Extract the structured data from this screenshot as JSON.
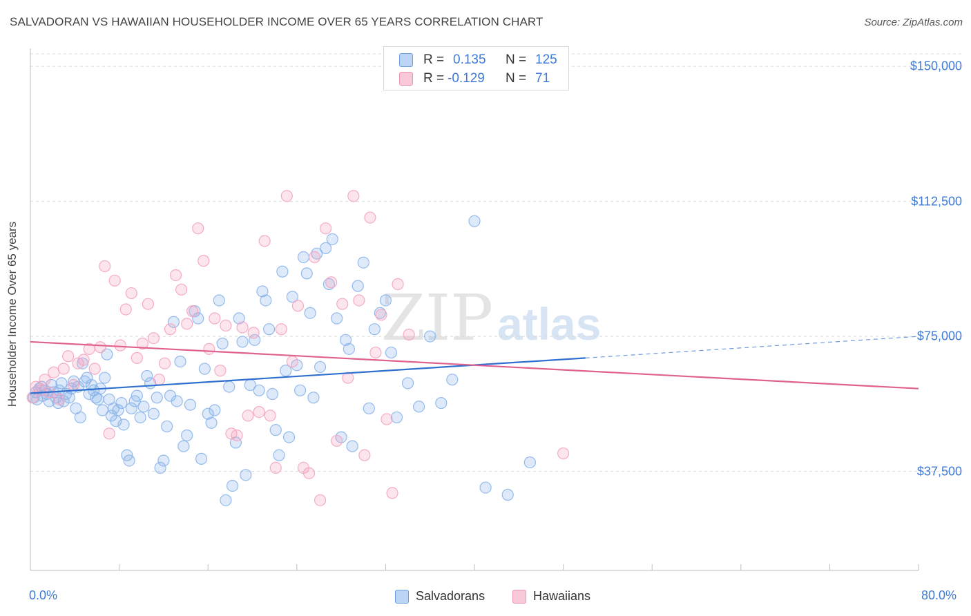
{
  "header": {
    "title": "SALVADORAN VS HAWAIIAN HOUSEHOLDER INCOME OVER 65 YEARS CORRELATION CHART",
    "source": "Source: ZipAtlas.com"
  },
  "watermark": {
    "part1": "ZIP",
    "part2": "atlas"
  },
  "legend": {
    "rows": [
      {
        "r_label": "R =",
        "r_value": "0.135",
        "n_label": "N =",
        "n_value": "125"
      },
      {
        "r_label": "R =",
        "r_value": "-0.129",
        "n_label": "N =",
        "n_value": "71"
      }
    ]
  },
  "chart_data": {
    "type": "scatter",
    "xlabel": "",
    "ylabel": "Householder Income Over 65 years",
    "xlim": [
      0,
      80
    ],
    "ylim": [
      10000,
      155000
    ],
    "x_tick_labels": [
      "0.0%",
      "80.0%"
    ],
    "y_ticks": [
      {
        "value": 37500,
        "label": "$37,500"
      },
      {
        "value": 75000,
        "label": "$75,000"
      },
      {
        "value": 112500,
        "label": "$112,500"
      },
      {
        "value": 150000,
        "label": "$150,000"
      }
    ],
    "grid": "horizontal dashed",
    "legend_position": "top-center",
    "series": [
      {
        "name": "Salvadorans",
        "color": "#8ab4ea",
        "line_color": "#2f6fd0",
        "trend": {
          "x0": 0,
          "y0": 59200,
          "x1": 50,
          "y1": 69000,
          "dashed_to_x": 80,
          "dashed_to_y": 75000
        },
        "points": [
          [
            0.3,
            58000
          ],
          [
            0.5,
            59500
          ],
          [
            0.6,
            57500
          ],
          [
            0.8,
            60500
          ],
          [
            1.0,
            61000
          ],
          [
            1.1,
            58500
          ],
          [
            1.3,
            60000
          ],
          [
            1.5,
            59000
          ],
          [
            1.7,
            57000
          ],
          [
            1.9,
            61500
          ],
          [
            2.1,
            59500
          ],
          [
            2.3,
            58000
          ],
          [
            2.5,
            56500
          ],
          [
            2.6,
            60000
          ],
          [
            2.8,
            62000
          ],
          [
            3.0,
            57000
          ],
          [
            3.2,
            59000
          ],
          [
            3.5,
            58000
          ],
          [
            3.7,
            60500
          ],
          [
            3.9,
            62500
          ],
          [
            4.1,
            55000
          ],
          [
            4.3,
            61000
          ],
          [
            4.5,
            52500
          ],
          [
            4.7,
            67500
          ],
          [
            4.9,
            62500
          ],
          [
            5.1,
            63500
          ],
          [
            5.3,
            59000
          ],
          [
            5.5,
            61500
          ],
          [
            5.7,
            60000
          ],
          [
            5.9,
            58000
          ],
          [
            6.1,
            57500
          ],
          [
            6.3,
            60500
          ],
          [
            6.5,
            54500
          ],
          [
            6.7,
            63500
          ],
          [
            6.9,
            70000
          ],
          [
            7.1,
            57500
          ],
          [
            7.3,
            53000
          ],
          [
            7.5,
            55000
          ],
          [
            7.7,
            51500
          ],
          [
            7.9,
            54500
          ],
          [
            8.2,
            56500
          ],
          [
            8.4,
            50500
          ],
          [
            8.7,
            42000
          ],
          [
            8.9,
            40500
          ],
          [
            9.1,
            55000
          ],
          [
            9.4,
            57000
          ],
          [
            9.6,
            58500
          ],
          [
            9.9,
            52500
          ],
          [
            10.2,
            55500
          ],
          [
            10.5,
            64000
          ],
          [
            10.8,
            62000
          ],
          [
            11.1,
            53500
          ],
          [
            11.4,
            58000
          ],
          [
            11.7,
            38500
          ],
          [
            12.0,
            40500
          ],
          [
            12.3,
            50000
          ],
          [
            12.6,
            58500
          ],
          [
            12.9,
            79000
          ],
          [
            13.2,
            57000
          ],
          [
            13.5,
            68000
          ],
          [
            13.8,
            44500
          ],
          [
            14.1,
            47500
          ],
          [
            14.4,
            56000
          ],
          [
            14.8,
            82000
          ],
          [
            15.1,
            80000
          ],
          [
            15.4,
            41000
          ],
          [
            15.7,
            66000
          ],
          [
            16.0,
            53500
          ],
          [
            16.3,
            51000
          ],
          [
            16.6,
            54500
          ],
          [
            17.0,
            85000
          ],
          [
            17.3,
            73000
          ],
          [
            17.6,
            29500
          ],
          [
            17.9,
            61000
          ],
          [
            18.2,
            33500
          ],
          [
            18.5,
            45500
          ],
          [
            18.8,
            80000
          ],
          [
            19.1,
            73500
          ],
          [
            19.4,
            36500
          ],
          [
            19.8,
            61500
          ],
          [
            20.2,
            74000
          ],
          [
            20.6,
            60000
          ],
          [
            20.9,
            87500
          ],
          [
            21.2,
            85000
          ],
          [
            21.5,
            77000
          ],
          [
            21.8,
            59000
          ],
          [
            22.1,
            49000
          ],
          [
            22.4,
            42000
          ],
          [
            22.7,
            93000
          ],
          [
            23.0,
            65500
          ],
          [
            23.3,
            47000
          ],
          [
            23.6,
            86000
          ],
          [
            24.0,
            67000
          ],
          [
            24.3,
            60000
          ],
          [
            24.6,
            97000
          ],
          [
            24.9,
            92500
          ],
          [
            25.2,
            81500
          ],
          [
            25.5,
            58000
          ],
          [
            25.8,
            98000
          ],
          [
            26.1,
            66500
          ],
          [
            26.6,
            99500
          ],
          [
            26.9,
            89500
          ],
          [
            27.2,
            102000
          ],
          [
            27.6,
            80000
          ],
          [
            28.0,
            47000
          ],
          [
            28.4,
            74000
          ],
          [
            28.7,
            71500
          ],
          [
            29.0,
            44500
          ],
          [
            29.5,
            89000
          ],
          [
            30.0,
            95500
          ],
          [
            30.5,
            55000
          ],
          [
            31.0,
            77000
          ],
          [
            31.5,
            81500
          ],
          [
            32.0,
            85000
          ],
          [
            32.5,
            70500
          ],
          [
            33.0,
            52500
          ],
          [
            34.0,
            62000
          ],
          [
            35.0,
            55500
          ],
          [
            36.0,
            75000
          ],
          [
            37.0,
            56500
          ],
          [
            38.0,
            63000
          ],
          [
            40.0,
            107000
          ],
          [
            41.0,
            33000
          ],
          [
            43.0,
            31000
          ],
          [
            45.0,
            40000
          ]
        ]
      },
      {
        "name": "Hawaiians",
        "color": "#f4a3c0",
        "line_color": "#e0608f",
        "trend": {
          "x0": 0,
          "y0": 73500,
          "x1": 80,
          "y1": 60500
        },
        "points": [
          [
            0.2,
            58000
          ],
          [
            0.5,
            61000
          ],
          [
            0.9,
            60000
          ],
          [
            1.3,
            63000
          ],
          [
            1.7,
            59500
          ],
          [
            2.1,
            65000
          ],
          [
            2.6,
            57500
          ],
          [
            3.0,
            66000
          ],
          [
            3.4,
            69500
          ],
          [
            3.9,
            61500
          ],
          [
            4.3,
            67500
          ],
          [
            4.8,
            68500
          ],
          [
            5.3,
            71500
          ],
          [
            5.8,
            66000
          ],
          [
            6.3,
            72000
          ],
          [
            6.7,
            94500
          ],
          [
            7.1,
            48000
          ],
          [
            7.6,
            90500
          ],
          [
            8.1,
            72500
          ],
          [
            8.6,
            82500
          ],
          [
            9.1,
            87000
          ],
          [
            9.6,
            69000
          ],
          [
            10.1,
            73000
          ],
          [
            10.6,
            84000
          ],
          [
            11.1,
            74500
          ],
          [
            11.6,
            63000
          ],
          [
            12.1,
            67500
          ],
          [
            12.6,
            77000
          ],
          [
            13.1,
            92000
          ],
          [
            13.6,
            88000
          ],
          [
            14.1,
            78500
          ],
          [
            14.6,
            82000
          ],
          [
            15.1,
            105000
          ],
          [
            15.6,
            96000
          ],
          [
            16.1,
            71500
          ],
          [
            16.6,
            80000
          ],
          [
            17.1,
            65500
          ],
          [
            17.6,
            78000
          ],
          [
            18.1,
            48000
          ],
          [
            18.6,
            47500
          ],
          [
            19.1,
            77500
          ],
          [
            19.6,
            53000
          ],
          [
            20.1,
            76000
          ],
          [
            20.6,
            54000
          ],
          [
            21.1,
            101500
          ],
          [
            21.6,
            53000
          ],
          [
            22.1,
            38500
          ],
          [
            22.6,
            77000
          ],
          [
            23.1,
            114000
          ],
          [
            23.6,
            68000
          ],
          [
            24.1,
            83500
          ],
          [
            24.6,
            38500
          ],
          [
            25.1,
            37000
          ],
          [
            25.6,
            97000
          ],
          [
            26.1,
            29500
          ],
          [
            26.6,
            105000
          ],
          [
            27.1,
            90000
          ],
          [
            27.6,
            46000
          ],
          [
            28.1,
            84000
          ],
          [
            28.6,
            63500
          ],
          [
            29.1,
            114000
          ],
          [
            29.6,
            85000
          ],
          [
            30.1,
            42000
          ],
          [
            30.6,
            108000
          ],
          [
            31.1,
            70500
          ],
          [
            31.6,
            81000
          ],
          [
            32.1,
            52000
          ],
          [
            32.6,
            31500
          ],
          [
            33.1,
            89500
          ],
          [
            34.1,
            75500
          ],
          [
            48.0,
            42500
          ]
        ]
      }
    ]
  }
}
